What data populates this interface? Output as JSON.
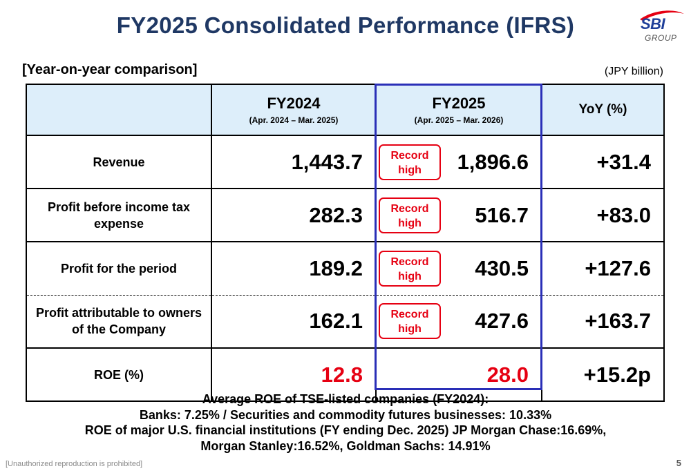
{
  "title": "FY2025 Consolidated Performance (IFRS)",
  "logo": {
    "brand": "SBI",
    "sub": "GROUP"
  },
  "subtitle": "[Year-on-year comparison]",
  "unit": "(JPY billion)",
  "table": {
    "headers": [
      {
        "main": "",
        "sub": ""
      },
      {
        "main": "FY2024",
        "sub": "(Apr. 2024 – Mar. 2025)"
      },
      {
        "main": "FY2025",
        "sub": "(Apr. 2025 – Mar. 2026)"
      },
      {
        "main": "YoY (%)",
        "sub": ""
      }
    ],
    "rows": [
      {
        "label": "Revenue",
        "fy2024": "1,443.7",
        "fy2025": "1,896.6",
        "yoy": "+31.4",
        "badge": "Record high"
      },
      {
        "label": "Profit before income tax expense",
        "fy2024": "282.3",
        "fy2025": "516.7",
        "yoy": "+83.0",
        "badge": "Record high"
      },
      {
        "label": "Profit for the period",
        "fy2024": "189.2",
        "fy2025": "430.5",
        "yoy": "+127.6",
        "badge": "Record high"
      },
      {
        "label": "Profit attributable to owners of the Company",
        "fy2024": "162.1",
        "fy2025": "427.6",
        "yoy": "+163.7",
        "badge": "Record high"
      },
      {
        "label": "ROE (%)",
        "fy2024": "12.8",
        "fy2025": "28.0",
        "yoy": "+15.2p",
        "badge": ""
      }
    ]
  },
  "notes": [
    "Average ROE of TSE-listed companies (FY2024):",
    "Banks: 7.25% / Securities and commodity futures businesses: 10.33%",
    "ROE of major U.S. financial institutions (FY ending Dec. 2025) JP Morgan Chase:16.69%,",
    "Morgan Stanley:16.52%, Goldman Sachs: 14.91%"
  ],
  "footer": {
    "notice": "[Unauthorized reproduction is prohibited]",
    "page": "5"
  },
  "colors": {
    "title": "#1f3864",
    "header_bg": "#ddeefa",
    "highlight_border": "#2a2fb7",
    "record_red": "#e60012"
  }
}
